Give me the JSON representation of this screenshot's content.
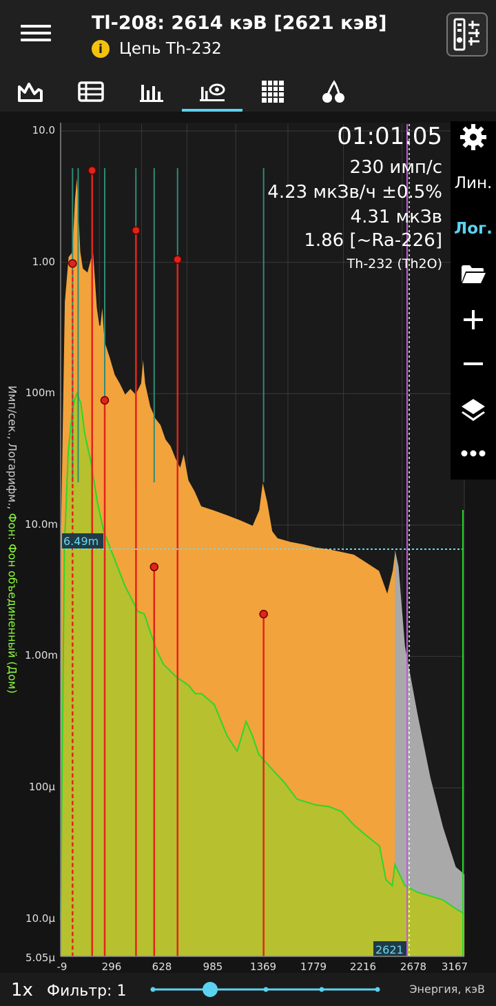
{
  "header": {
    "title": "Tl-208: 2614 кэВ [2621 кэВ]",
    "subtitle": "Цепь Th-232",
    "info_icon": "info-icon",
    "menu_icon": "hamburger-menu-icon",
    "tools_icon": "tools-icon",
    "info_color": "#f4c20d"
  },
  "tabs": [
    {
      "name": "spectrum-tab",
      "icon": "spectrum-icon"
    },
    {
      "name": "table-tab",
      "icon": "table-icon"
    },
    {
      "name": "histogram-tab",
      "icon": "bar-chart-icon"
    },
    {
      "name": "isotope-tab",
      "icon": "isotope-search-icon",
      "active": true
    },
    {
      "name": "grid-tab",
      "icon": "grid-icon"
    },
    {
      "name": "cherry-tab",
      "icon": "cherry-icon"
    }
  ],
  "overlay": {
    "time": "01:01:05",
    "count_rate": "230 имп/с",
    "dose_rate": "4.23 мкЗв/ч ±0.5%",
    "dose": "4.31 мкЗв",
    "ratio": "1.86 [~Ra-226]",
    "source": "Th-232 (Th2O)"
  },
  "side_panel": {
    "lin": "Лин.",
    "log": "Лог.",
    "active_color": "#5bd3f0"
  },
  "cursor": {
    "level_label": "6.49m",
    "energy_label": "2621"
  },
  "bottom": {
    "zoom": "1x",
    "filter": "Фильтр: 1",
    "x_axis_label": "Энергия, кэВ",
    "slider_value": 1
  },
  "chart_data": {
    "type": "area",
    "ylabel_white": "Имп/сек., Логарифм.,",
    "ylabel_green": "Фон: Фон объединенный (Дом)",
    "y_scale": "log",
    "y_ticks": [
      "10.0",
      "1.00",
      "100m",
      "10.0m",
      "1.00m",
      "100μ",
      "10.0μ",
      "5.05μ"
    ],
    "x_ticks": [
      "-9",
      "296",
      "628",
      "985",
      "1369",
      "1779",
      "2216",
      "2678",
      "3167"
    ],
    "xlim": [
      -9,
      3167
    ],
    "ylim": [
      5.05e-06,
      10.0
    ],
    "grid": true,
    "colors": {
      "measured": "#f2a33c",
      "background": "#b7c02e",
      "background_line": "#2ad62a",
      "markers": "#e0241b",
      "peaks": "#2e8c76",
      "cursor": "#c45ae0",
      "high_energy": "#a9a9a9"
    },
    "series": [
      {
        "name": "",
        "x": [
          -9,
          20,
          50,
          80,
          100,
          120,
          150,
          170,
          200,
          230,
          238,
          250,
          280,
          300,
          320,
          340,
          380,
          420,
          460,
          500,
          540,
          580,
          620,
          640,
          660,
          700,
          740,
          780,
          820,
          860,
          900,
          930,
          960,
          1000,
          1050,
          1100,
          1200,
          1300,
          1400,
          1500,
          1550,
          1580,
          1620,
          1660,
          1700,
          1800,
          1900,
          2000,
          2100,
          2200,
          2300,
          2400,
          2500,
          2560,
          2600,
          2621,
          2650,
          2700,
          2800,
          2900,
          3000,
          3100,
          3167
        ],
        "y": [
          0.01,
          0.5,
          1.1,
          1.2,
          3,
          5,
          1.2,
          0.9,
          0.85,
          1.1,
          1.9,
          1.2,
          0.45,
          0.33,
          0.5,
          0.25,
          0.19,
          0.14,
          0.12,
          0.1,
          0.11,
          0.1,
          0.12,
          0.2,
          0.12,
          0.08,
          0.065,
          0.058,
          0.045,
          0.04,
          0.032,
          0.028,
          0.036,
          0.022,
          0.018,
          0.014,
          0.013,
          0.012,
          0.011,
          0.01,
          0.013,
          0.022,
          0.015,
          0.009,
          0.008,
          0.0075,
          0.0072,
          0.0068,
          0.0066,
          0.0063,
          0.006,
          0.0052,
          0.0045,
          0.0031,
          0.0045,
          0.0065,
          0.0048,
          0.0012,
          0.00036,
          0.00012,
          5e-05,
          2.5e-05,
          2.2e-05
        ]
      },
      {
        "name": "Фон: Фон объединенный (Дом)",
        "x": [
          -9,
          20,
          50,
          80,
          100,
          120,
          150,
          180,
          230,
          280,
          330,
          400,
          500,
          600,
          650,
          700,
          750,
          800,
          900,
          1000,
          1050,
          1100,
          1200,
          1300,
          1350,
          1380,
          1400,
          1450,
          1500,
          1550,
          1650,
          1750,
          1850,
          2000,
          2100,
          2200,
          2300,
          2400,
          2500,
          2550,
          2600,
          2621,
          2700,
          2800,
          2900,
          3000,
          3100,
          3167
        ],
        "y": [
          1e-05,
          0.0065,
          0.035,
          0.07,
          0.09,
          0.1,
          0.085,
          0.05,
          0.03,
          0.015,
          0.009,
          0.006,
          0.0034,
          0.0022,
          0.0021,
          0.0015,
          0.0011,
          0.00087,
          0.0007,
          0.0006,
          0.00052,
          0.00052,
          0.00043,
          0.00025,
          0.00021,
          0.00019,
          0.00022,
          0.00032,
          0.00025,
          0.00018,
          0.00014,
          0.00011,
          8.2e-05,
          7.4e-05,
          7.2e-05,
          6.6e-05,
          5.2e-05,
          4.3e-05,
          3.6e-05,
          2e-05,
          1.8e-05,
          2.6e-05,
          1.8e-05,
          1.6e-05,
          1.5e-05,
          1.4e-05,
          1.2e-05,
          1.1e-05
        ]
      }
    ],
    "markers": [
      {
        "energy": 239,
        "y": 5.0
      },
      {
        "energy": 584,
        "y": 1.75
      },
      {
        "energy": 911,
        "y": 1.05
      },
      {
        "energy": 85,
        "y": 0.98,
        "dashed": true
      },
      {
        "energy": 338,
        "y": 0.089
      },
      {
        "energy": 727,
        "y": 0.0048
      },
      {
        "energy": 1588,
        "y": 0.0021
      }
    ],
    "peak_lines": [
      85,
      129,
      338,
      583,
      727,
      911,
      1588
    ]
  }
}
